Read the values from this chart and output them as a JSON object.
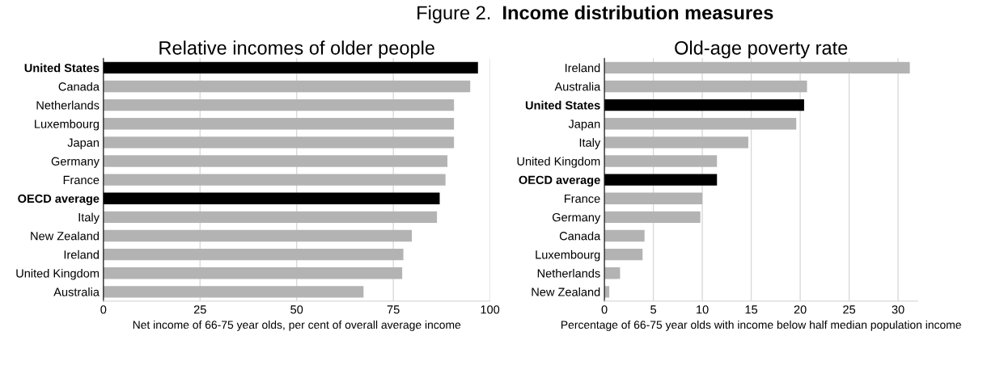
{
  "chart_data": [
    {
      "type": "bar",
      "orientation": "horizontal",
      "title": "Relative incomes of older people",
      "xlabel": "Net income of 66-75 year olds, per cent of overall average income",
      "annotations": [
        "Figure 2.",
        "Income distribution measures"
      ],
      "categories": [
        "United States",
        "Canada",
        "Netherlands",
        "Luxembourg",
        "Japan",
        "Germany",
        "France",
        "OECD average",
        "Italy",
        "New Zealand",
        "Ireland",
        "United Kingdom",
        "Australia"
      ],
      "values": [
        96.9,
        94.9,
        90.7,
        90.7,
        90.7,
        89.0,
        88.5,
        87.0,
        86.3,
        79.8,
        77.6,
        77.3,
        67.3
      ],
      "colors": [
        "#000000",
        "#b3b3b3",
        "#b3b3b3",
        "#b3b3b3",
        "#b3b3b3",
        "#b3b3b3",
        "#b3b3b3",
        "#000000",
        "#b3b3b3",
        "#b3b3b3",
        "#b3b3b3",
        "#b3b3b3",
        "#b3b3b3"
      ],
      "xlim": [
        0,
        100
      ],
      "xticks": [
        0,
        25,
        50,
        75,
        100
      ],
      "grid": "x"
    },
    {
      "type": "bar",
      "orientation": "horizontal",
      "title": "Old-age poverty rate",
      "xlabel": "Percentage of 66-75 year olds with income below half median population income",
      "categories": [
        "Ireland",
        "Australia",
        "United States",
        "Japan",
        "Italy",
        "United Kingdom",
        "OECD average",
        "France",
        "Germany",
        "Canada",
        "Luxembourg",
        "Netherlands",
        "New Zealand"
      ],
      "values": [
        31.2,
        20.7,
        20.4,
        19.6,
        14.7,
        11.5,
        11.5,
        10.0,
        9.8,
        4.1,
        3.9,
        1.6,
        0.5
      ],
      "colors": [
        "#b3b3b3",
        "#b3b3b3",
        "#000000",
        "#b3b3b3",
        "#b3b3b3",
        "#b3b3b3",
        "#000000",
        "#b3b3b3",
        "#b3b3b3",
        "#b3b3b3",
        "#b3b3b3",
        "#b3b3b3",
        "#b3b3b3"
      ],
      "xlim": [
        0,
        32
      ],
      "xticks": [
        0,
        5,
        10,
        15,
        20,
        25,
        30
      ],
      "grid": "x"
    }
  ]
}
